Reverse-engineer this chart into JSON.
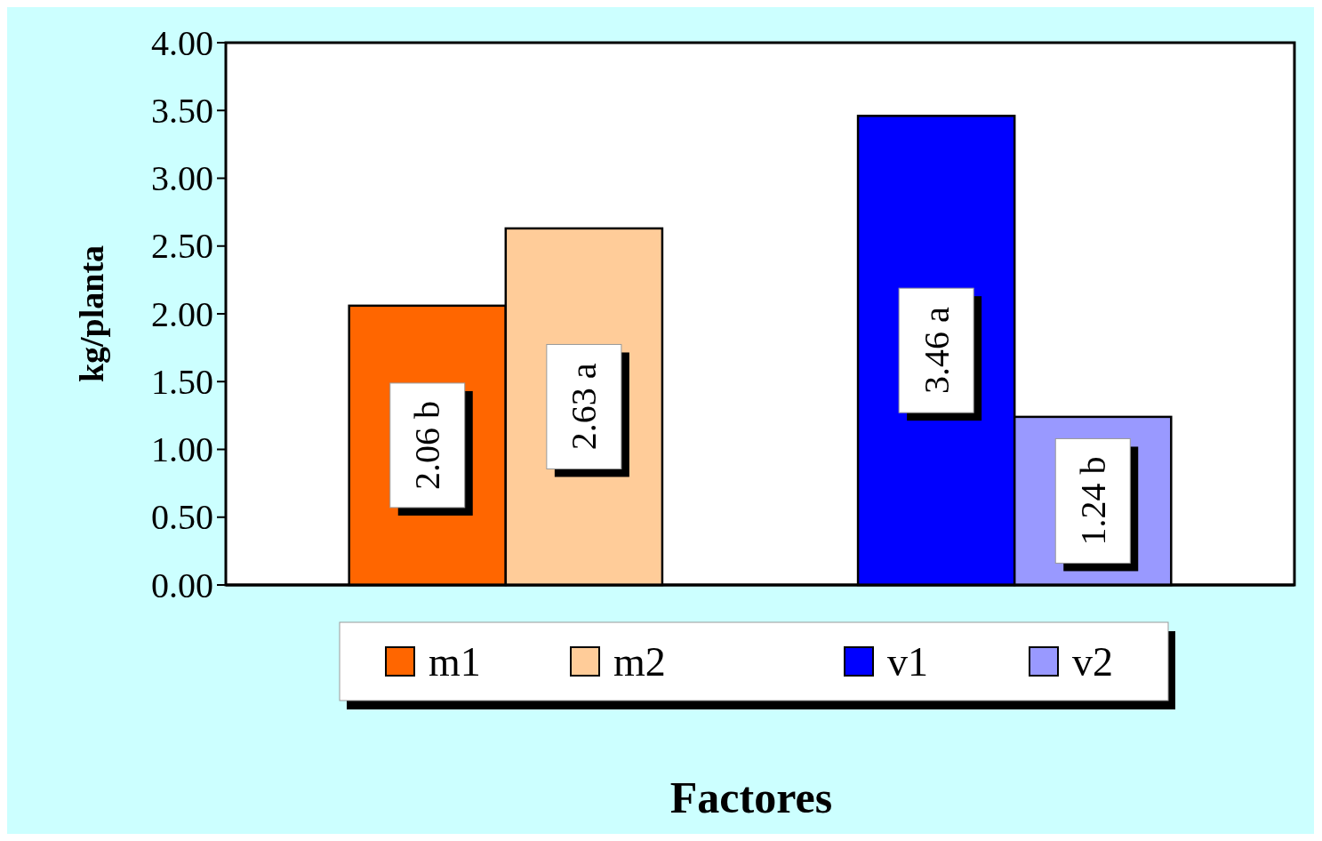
{
  "chart_data": {
    "type": "bar",
    "xlabel": "Factores",
    "ylabel": "kg/planta",
    "categories": [
      null,
      null
    ],
    "series": [
      {
        "name": "m1",
        "color": "#ff6600",
        "values": [
          2.06,
          null
        ],
        "value_labels": [
          "2.06 b",
          null
        ]
      },
      {
        "name": "m2",
        "color": "#ffcc99",
        "values": [
          2.63,
          null
        ],
        "value_labels": [
          "2.63 a",
          null
        ]
      },
      {
        "name": "v1",
        "color": "#0000ff",
        "values": [
          null,
          3.46
        ],
        "value_labels": [
          null,
          "3.46 a"
        ]
      },
      {
        "name": "v2",
        "color": "#9999ff",
        "values": [
          null,
          1.24
        ],
        "value_labels": [
          null,
          "1.24 b"
        ]
      }
    ],
    "ylim": [
      0,
      4
    ],
    "yticks": [
      {
        "value": 0,
        "label": "0.00"
      },
      {
        "value": 0.5,
        "label": "0.50"
      },
      {
        "value": 1,
        "label": "1.00"
      },
      {
        "value": 1.5,
        "label": "1.50"
      },
      {
        "value": 2,
        "label": "2.00"
      },
      {
        "value": 2.5,
        "label": "2.50"
      },
      {
        "value": 3,
        "label": "3.00"
      },
      {
        "value": 3.5,
        "label": "3.50"
      },
      {
        "value": 4,
        "label": "4.00"
      }
    ],
    "grid": false,
    "legend": "bottom"
  }
}
